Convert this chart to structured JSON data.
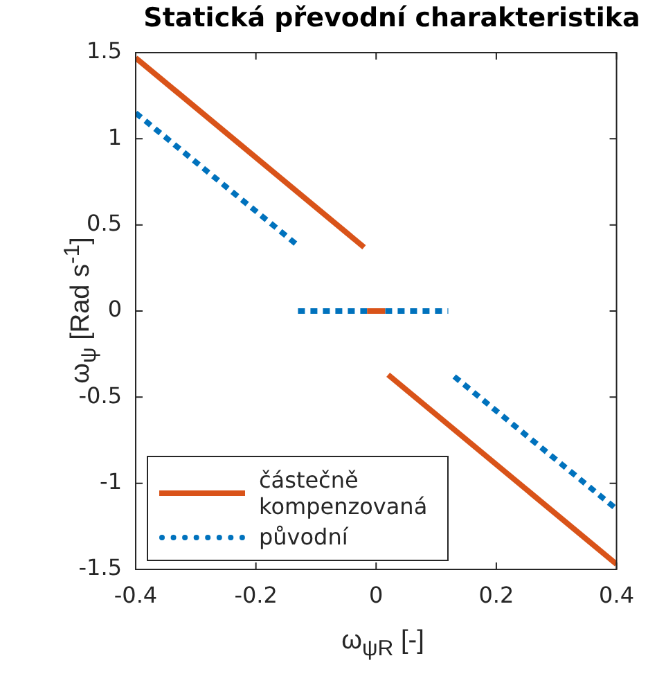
{
  "chart_data": {
    "type": "line",
    "title": "Statická převodní charakteristika",
    "xlabel": "ω$_{ψR}$ [-]",
    "ylabel": "ω$_{ψ}$ [Rad s$^{-1}$]",
    "xlim": [
      -0.4,
      0.4
    ],
    "xticks": [
      -0.4,
      -0.2,
      0,
      0.2,
      0.4
    ],
    "ylim": [
      -1.5,
      1.5
    ],
    "yticks": [
      -1.5,
      -1,
      -0.5,
      0,
      0.5,
      1,
      1.5
    ],
    "grid": false,
    "legend": "bottom left",
    "marker": "none",
    "series": [
      {
        "name": "částečně kompenzovaná",
        "color": "#d95319",
        "line_style": "solid",
        "x": [
          -0.4,
          -0.02
        ],
        "values": [
          1.47,
          0.37
        ]
      },
      {
        "color": "#d95319",
        "line_style": "solid",
        "x": [
          -0.015,
          0.015
        ],
        "values": [
          0,
          0
        ]
      },
      {
        "color": "#d95319",
        "line_style": "solid",
        "x": [
          0.02,
          0.4
        ],
        "values": [
          -0.37,
          -1.47
        ]
      },
      {
        "name": "původní",
        "color": "#0072bd",
        "line_style": "dotted",
        "x": [
          -0.4,
          -0.13
        ],
        "values": [
          1.15,
          0.38
        ]
      },
      {
        "color": "#0072bd",
        "line_style": "dotted",
        "x": [
          -0.13,
          0.12
        ],
        "values": [
          0,
          0
        ]
      },
      {
        "color": "#0072bd",
        "line_style": "dotted",
        "x": [
          0.13,
          0.4
        ],
        "values": [
          -0.38,
          -1.15
        ]
      }
    ]
  }
}
